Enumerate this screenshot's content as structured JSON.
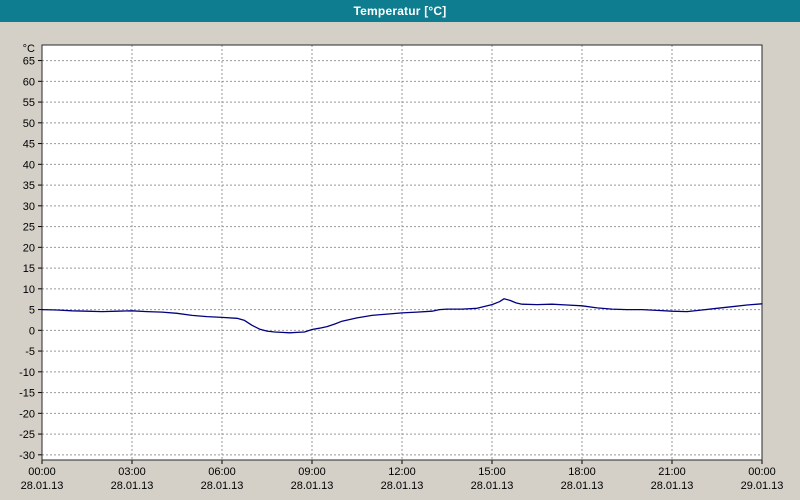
{
  "window": {
    "title": "Temperatur [°C]"
  },
  "colors": {
    "titlebar": "#0d7d8f",
    "background": "#d4d0c8",
    "plot_background": "#ffffff",
    "grid": "#999999",
    "axis_border": "#2a2a2a",
    "line": "#000080",
    "tick_text": "#000000"
  },
  "chart_data": {
    "type": "line",
    "title": "Temperatur [°C]",
    "ylabel": "°C",
    "xlabel": "",
    "grid": true,
    "legend": "none",
    "ylim": [
      -31.25,
      68.75
    ],
    "y_ticks": [
      65,
      60,
      55,
      50,
      45,
      40,
      35,
      30,
      25,
      20,
      15,
      10,
      5,
      0,
      -5,
      -10,
      -15,
      -20,
      -25,
      -30
    ],
    "x_range_hours": [
      0,
      24
    ],
    "x_ticks": [
      {
        "hour": 0,
        "time": "00:00",
        "date": "28.01.13"
      },
      {
        "hour": 3,
        "time": "03:00",
        "date": "28.01.13"
      },
      {
        "hour": 6,
        "time": "06:00",
        "date": "28.01.13"
      },
      {
        "hour": 9,
        "time": "09:00",
        "date": "28.01.13"
      },
      {
        "hour": 12,
        "time": "12:00",
        "date": "28.01.13"
      },
      {
        "hour": 15,
        "time": "15:00",
        "date": "28.01.13"
      },
      {
        "hour": 18,
        "time": "18:00",
        "date": "28.01.13"
      },
      {
        "hour": 21,
        "time": "21:00",
        "date": "28.01.13"
      },
      {
        "hour": 24,
        "time": "00:00",
        "date": "29.01.13"
      }
    ],
    "series": [
      {
        "name": "Temperatur",
        "color": "#000080",
        "points": [
          [
            0,
            5.0
          ],
          [
            0.5,
            4.9
          ],
          [
            1,
            4.7
          ],
          [
            1.5,
            4.6
          ],
          [
            2,
            4.5
          ],
          [
            2.5,
            4.6
          ],
          [
            3,
            4.7
          ],
          [
            3.5,
            4.5
          ],
          [
            4,
            4.4
          ],
          [
            4.5,
            4.1
          ],
          [
            5,
            3.6
          ],
          [
            5.5,
            3.3
          ],
          [
            6,
            3.1
          ],
          [
            6.5,
            2.9
          ],
          [
            6.75,
            2.4
          ],
          [
            7,
            1.2
          ],
          [
            7.25,
            0.3
          ],
          [
            7.5,
            -0.2
          ],
          [
            7.75,
            -0.4
          ],
          [
            8,
            -0.5
          ],
          [
            8.25,
            -0.6
          ],
          [
            8.5,
            -0.5
          ],
          [
            8.75,
            -0.4
          ],
          [
            9,
            0.2
          ],
          [
            9.25,
            0.5
          ],
          [
            9.5,
            0.9
          ],
          [
            9.75,
            1.5
          ],
          [
            10,
            2.2
          ],
          [
            10.5,
            3.0
          ],
          [
            11,
            3.6
          ],
          [
            11.5,
            3.9
          ],
          [
            12,
            4.2
          ],
          [
            12.5,
            4.4
          ],
          [
            13,
            4.6
          ],
          [
            13.25,
            5.0
          ],
          [
            13.5,
            5.1
          ],
          [
            14,
            5.1
          ],
          [
            14.5,
            5.3
          ],
          [
            15,
            6.2
          ],
          [
            15.25,
            6.9
          ],
          [
            15.4,
            7.6
          ],
          [
            15.6,
            7.2
          ],
          [
            15.8,
            6.6
          ],
          [
            16,
            6.3
          ],
          [
            16.5,
            6.2
          ],
          [
            17,
            6.3
          ],
          [
            17.5,
            6.1
          ],
          [
            18,
            5.9
          ],
          [
            18.5,
            5.4
          ],
          [
            19,
            5.1
          ],
          [
            19.5,
            5.0
          ],
          [
            20,
            5.0
          ],
          [
            20.5,
            4.8
          ],
          [
            21,
            4.6
          ],
          [
            21.5,
            4.5
          ],
          [
            22,
            4.9
          ],
          [
            22.5,
            5.3
          ],
          [
            23,
            5.7
          ],
          [
            23.5,
            6.1
          ],
          [
            24,
            6.4
          ]
        ]
      }
    ]
  }
}
